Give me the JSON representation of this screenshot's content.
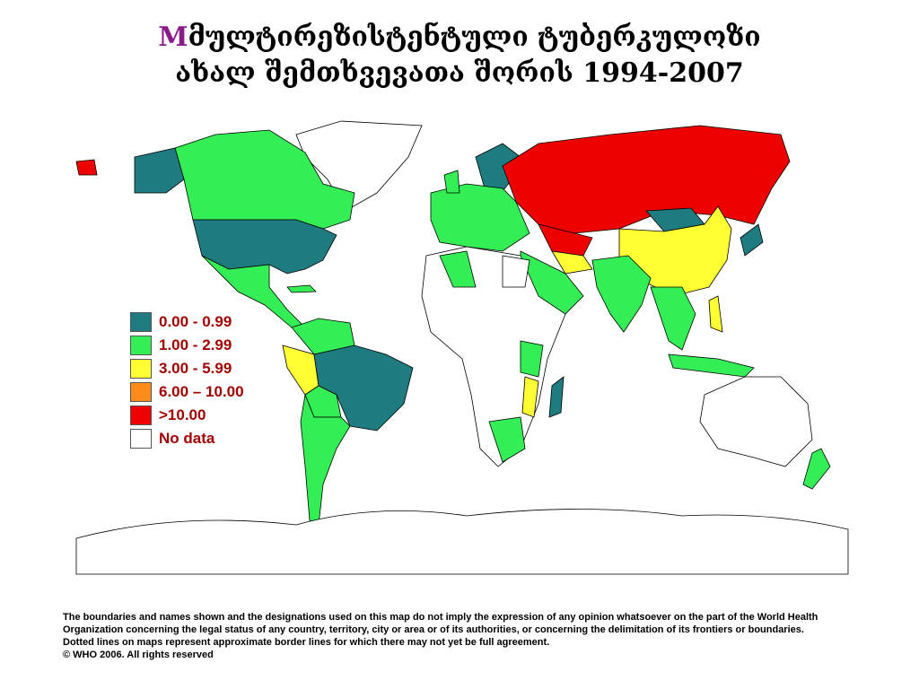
{
  "title": {
    "initial": "M",
    "line1": "მულტირეზისტენტული ტუბერკულოზი",
    "line2": "ახალ შემთხვევათა შორის 1994-2007"
  },
  "legend": [
    {
      "label": "0.00 - 0.99",
      "color": "#1e7b80"
    },
    {
      "label": "1.00 - 2.99",
      "color": "#33ee55"
    },
    {
      "label": "3.00 - 5.99",
      "color": "#ffff33"
    },
    {
      "label": "6.00 – 10.00",
      "color": "#ff8c1a"
    },
    {
      "label": ">10.00",
      "color": "#ee0000"
    },
    {
      "label": "No data",
      "color": "#ffffff"
    }
  ],
  "disclaimer": [
    "The boundaries and names shown and the designations used on this map do not imply the expression of any opinion whatsoever on the part of the World Health",
    "Organization concerning the legal status of any country, territory, city or area or of its authorities, or concerning the delimitation of its frontiers or boundaries.",
    "Dotted lines on maps represent approximate border lines for which there may not yet be full agreement.",
    "© WHO 2006. All rights reserved"
  ]
}
